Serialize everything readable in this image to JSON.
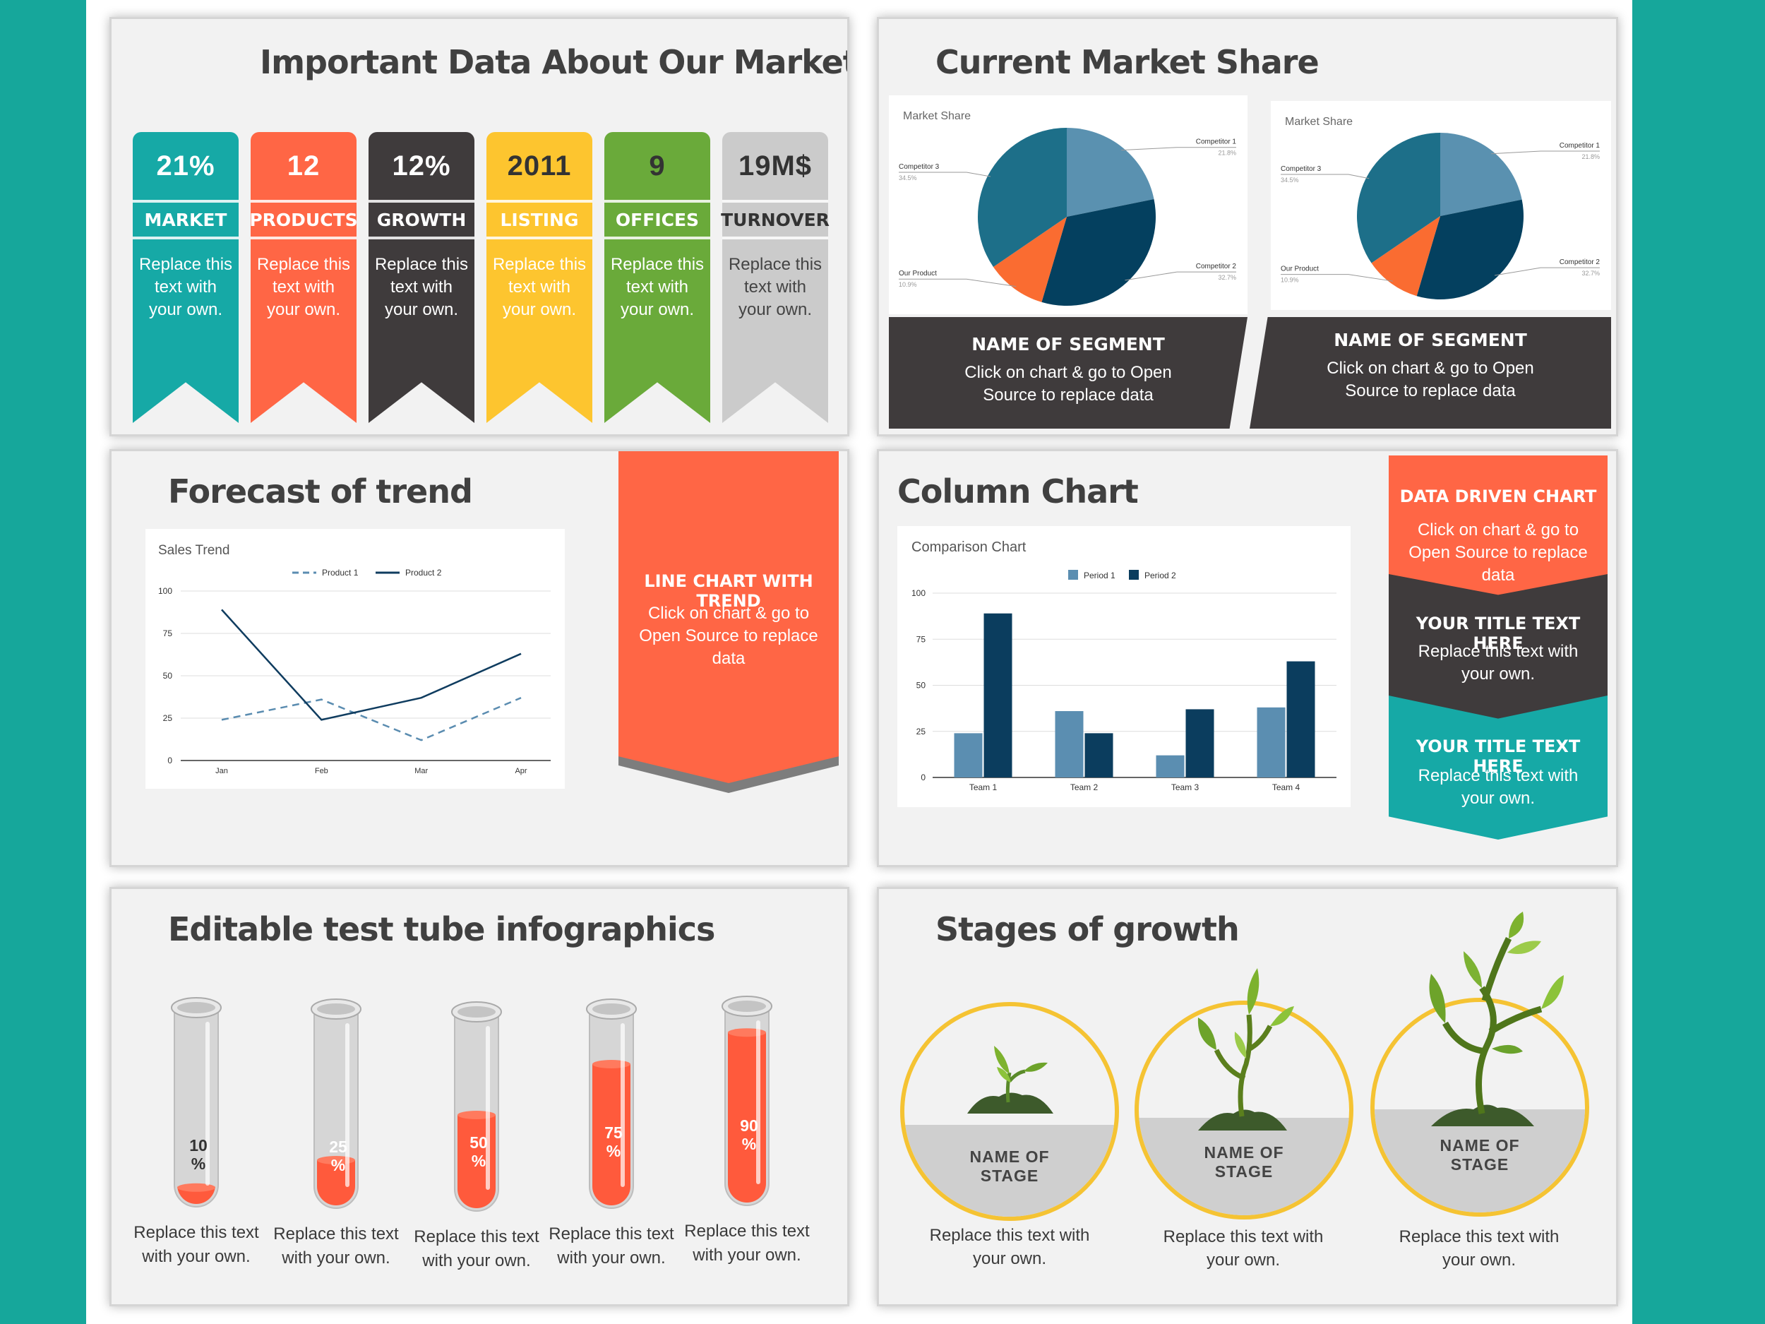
{
  "colors": {
    "background": "#16a79b",
    "teal": "#16a9a6",
    "orange": "#ff6645",
    "charcoal": "#3f3b3c",
    "yellow": "#fdc52f",
    "green": "#6aaa3a",
    "gray": "#cbcbcb",
    "pie_dark": "#04405f",
    "pie_mid": "#1d6f89",
    "pie_light": "#5a91b0",
    "pie_orange": "#fa6c31"
  },
  "slide1": {
    "title": "Important Data About Our Market",
    "ribbons": [
      {
        "value": "21%",
        "label": "MARKET",
        "text": "Replace this text with your own.",
        "color": "#16a9a6"
      },
      {
        "value": "12",
        "label": "PRODUCTS",
        "text": "Replace this text with your own.",
        "color": "#ff6645"
      },
      {
        "value": "12%",
        "label": "GROWTH",
        "text": "Replace this text with your own.",
        "color": "#3f3b3c"
      },
      {
        "value": "2011",
        "label": "LISTING",
        "text": "Replace this text with your own.",
        "color": "#fdc52f"
      },
      {
        "value": "9",
        "label": "OFFICES",
        "text": "Replace this text with your own.",
        "color": "#6aaa3a"
      },
      {
        "value": "19M$",
        "label": "TURNOVER",
        "text": "Replace this text with your own.",
        "color": "#cbcbcb"
      }
    ]
  },
  "slide2": {
    "title": "Current Market Share",
    "pies": [
      {
        "chart_title": "Market Share",
        "segment_title": "NAME OF SEGMENT",
        "segment_text": "Click on chart & go to Open Source to replace data"
      },
      {
        "chart_title": "Market Share",
        "segment_title": "NAME OF SEGMENT",
        "segment_text": "Click on chart & go to Open Source to replace data"
      }
    ]
  },
  "slide3": {
    "title": "Forecast of trend",
    "callout_title": "LINE CHART WITH TREND",
    "callout_text": "Click on chart & go to Open Source to replace data"
  },
  "slide4": {
    "title": "Column Chart",
    "blocks": [
      {
        "title": "DATA DRIVEN CHART",
        "text": "Click on chart & go to Open Source to replace data"
      },
      {
        "title": "YOUR TITLE TEXT HERE",
        "text": "Replace this text with your own."
      },
      {
        "title": "YOUR TITLE TEXT HERE",
        "text": "Replace this text with your own."
      }
    ]
  },
  "slide5": {
    "title": "Editable test tube infographics",
    "tubes": [
      {
        "percent": 10,
        "label": "10 %",
        "caption": "Replace this text with your own."
      },
      {
        "percent": 25,
        "label": "25 %",
        "caption": "Replace this text with your own."
      },
      {
        "percent": 50,
        "label": "50 %",
        "caption": "Replace this text with your own."
      },
      {
        "percent": 75,
        "label": "75 %",
        "caption": "Replace this text with your own."
      },
      {
        "percent": 90,
        "label": "90 %",
        "caption": "Replace this text with your own."
      }
    ]
  },
  "slide6": {
    "title": "Stages of growth",
    "stages": [
      {
        "name": "NAME OF STAGE",
        "caption": "Replace this text with your own."
      },
      {
        "name": "NAME OF STAGE",
        "caption": "Replace this text with your own."
      },
      {
        "name": "NAME OF STAGE",
        "caption": "Replace this text with your own."
      }
    ]
  },
  "chart_data": [
    {
      "type": "pie",
      "title": "Market Share",
      "labels": [
        "Competitor 1",
        "Competitor 2",
        "Our Product",
        "Competitor 3"
      ],
      "values": [
        21.8,
        32.7,
        10.9,
        34.5
      ],
      "value_labels": [
        "21.8%",
        "32.7%",
        "10.9%",
        "34.5%"
      ],
      "colors": [
        "#5a91b0",
        "#04405f",
        "#fa6c31",
        "#1d6f89"
      ]
    },
    {
      "type": "pie",
      "title": "Market Share",
      "labels": [
        "Competitor 1",
        "Competitor 2",
        "Our Product",
        "Competitor 3"
      ],
      "values": [
        21.8,
        32.7,
        10.9,
        34.5
      ],
      "value_labels": [
        "21.8%",
        "32.7%",
        "10.9%",
        "34.5%"
      ],
      "colors": [
        "#5a91b0",
        "#04405f",
        "#fa6c31",
        "#1d6f89"
      ]
    },
    {
      "type": "line",
      "title": "Sales Trend",
      "categories": [
        "Jan",
        "Feb",
        "Mar",
        "Apr"
      ],
      "series": [
        {
          "name": "Product 1",
          "values": [
            24,
            36,
            12,
            37
          ],
          "style": "dashed",
          "color": "#5a8cb0"
        },
        {
          "name": "Product 2",
          "values": [
            89,
            24,
            37,
            63
          ],
          "style": "solid",
          "color": "#0f3c5f"
        }
      ],
      "ylim": [
        0,
        100
      ],
      "yticks": [
        0,
        25,
        50,
        75,
        100
      ],
      "legend": "top",
      "grid": true
    },
    {
      "type": "bar",
      "title": "Comparison Chart",
      "categories": [
        "Team 1",
        "Team 2",
        "Team 3",
        "Team 4"
      ],
      "series": [
        {
          "name": "Period 1",
          "values": [
            24,
            36,
            12,
            38
          ],
          "color": "#5b8eb1"
        },
        {
          "name": "Period 2",
          "values": [
            89,
            24,
            37,
            63
          ],
          "color": "#0b3d5e"
        }
      ],
      "ylim": [
        0,
        100
      ],
      "yticks": [
        0,
        25,
        50,
        75,
        100
      ],
      "legend": "top",
      "grid": true
    }
  ]
}
